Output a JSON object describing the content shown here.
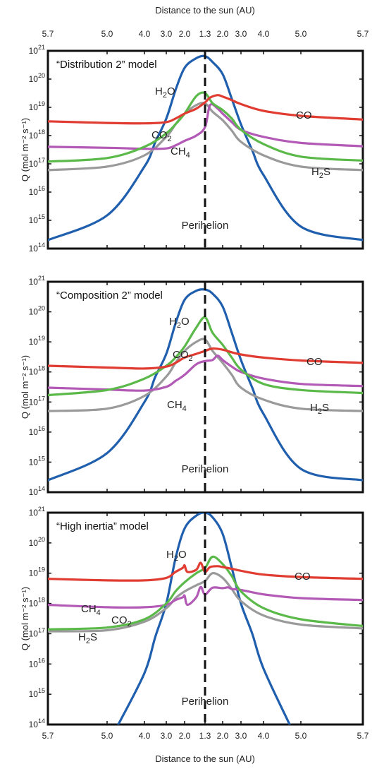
{
  "figure": {
    "top_axis_label": "Distance to the sun (AU)",
    "bottom_axis_label": "Distance to the sun (AU)",
    "x_tick_labels": [
      "5.7",
      "5.0",
      "4.0",
      "3.0",
      "2.0",
      "1.3",
      "2.0",
      "3.0",
      "4.0",
      "5.0",
      "5.7"
    ],
    "y_label": "Q (mol m⁻² s⁻¹)",
    "y_tick_exponents": [
      "14",
      "15",
      "16",
      "17",
      "18",
      "19",
      "20",
      "21"
    ],
    "y_tick_base": "10",
    "perihelion_label": "Perihelion"
  },
  "colors": {
    "H2O": "#1f5fad",
    "CO": "#e03c31",
    "CO2": "#5bb94a",
    "CH4": "#b25ab5",
    "H2S": "#9a9a9a"
  },
  "chart_data": [
    {
      "type": "line",
      "title": "“Distribution 2” model",
      "x_kind": "orbital position, inbound 5.7 AU → perihelion 1.3 AU → outbound 5.7 AU",
      "ylim": [
        100000000000000.0,
        1e+21
      ],
      "y_scale": "log",
      "annotations": {
        "H2O": "H₂O",
        "CO2": "CO₂",
        "CH4": "CH₄",
        "CO": "CO",
        "H2S": "H₂S"
      },
      "series": [
        {
          "name": "H2O",
          "x": [
            5.7,
            5.0,
            4.0,
            3.5,
            3.0,
            2.5,
            2.0,
            1.6,
            1.3,
            1.6,
            2.0,
            2.5,
            3.0,
            3.5,
            4.0,
            5.0,
            5.7
          ],
          "y": [
            200000000000000.0,
            1500000000000000.0,
            8e+16,
            6e+17,
            4e+18,
            4e+19,
            2.5e+20,
            5.5e+20,
            6.5e+20,
            4e+20,
            1.5e+20,
            2e+19,
            2.5e+18,
            3e+17,
            4e+16,
            600000000000000.0,
            200000000000000.0
          ]
        },
        {
          "name": "CO",
          "x": [
            5.7,
            5.0,
            4.0,
            3.0,
            2.5,
            2.0,
            1.6,
            1.3,
            1.5,
            1.8,
            2.0,
            2.5,
            3.0,
            4.0,
            5.0,
            5.7
          ],
          "y": [
            3.2e+18,
            2.8e+18,
            2.7e+18,
            3e+18,
            4e+18,
            6e+18,
            9e+18,
            1.5e+19,
            2.2e+19,
            2.7e+19,
            2.4e+19,
            1.8e+19,
            1.3e+19,
            7.5e+18,
            5e+18,
            3.7e+18
          ]
        },
        {
          "name": "CO2",
          "x": [
            5.7,
            5.0,
            4.0,
            3.0,
            2.5,
            2.0,
            1.6,
            1.3,
            1.6,
            2.0,
            2.5,
            3.0,
            4.0,
            5.0,
            5.7
          ],
          "y": [
            1.2e+17,
            1.6e+17,
            4e+17,
            1.2e+18,
            2.5e+18,
            6e+18,
            2.5e+19,
            3.2e+19,
            1.4e+19,
            8e+18,
            4e+18,
            1.6e+18,
            5e+17,
            1.8e+17,
            1.3e+17
          ]
        },
        {
          "name": "CH4",
          "x": [
            5.7,
            5.0,
            4.0,
            3.0,
            2.5,
            2.0,
            1.6,
            1.3,
            1.5,
            1.8,
            2.0,
            2.5,
            3.0,
            4.0,
            5.0,
            5.7
          ],
          "y": [
            4e+17,
            3.7e+17,
            3.4e+17,
            3.5e+17,
            4.5e+17,
            6.5e+17,
            1e+18,
            2e+18,
            1.2e+19,
            9e+18,
            6e+18,
            3e+18,
            1.6e+18,
            9e+17,
            5.5e+17,
            4.2e+17
          ]
        },
        {
          "name": "H2S",
          "x": [
            5.7,
            5.0,
            4.0,
            3.0,
            2.5,
            2.0,
            1.6,
            1.3,
            1.6,
            2.0,
            2.5,
            3.0,
            4.0,
            5.0,
            5.7
          ],
          "y": [
            6e+16,
            8e+16,
            2e+17,
            9e+17,
            2.5e+18,
            6e+18,
            1.2e+19,
            1.4e+19,
            7e+18,
            3.5e+18,
            1.5e+18,
            6e+17,
            2e+17,
            8e+16,
            6e+16
          ]
        }
      ]
    },
    {
      "type": "line",
      "title": "“Composition 2” model",
      "x_kind": "orbital position, inbound 5.7 AU → perihelion 1.3 AU → outbound 5.7 AU",
      "ylim": [
        100000000000000.0,
        1e+21
      ],
      "y_scale": "log",
      "annotations": {
        "H2O": "H₂O",
        "CO2": "CO₂",
        "CH4": "CH₄",
        "CO": "CO",
        "H2S": "H₂S"
      },
      "series": [
        {
          "name": "H2O",
          "x": [
            5.7,
            5.0,
            4.0,
            3.5,
            3.0,
            2.5,
            2.0,
            1.6,
            1.3,
            1.6,
            2.0,
            2.5,
            3.0,
            3.5,
            4.0,
            5.0,
            5.7
          ],
          "y": [
            250000000000000.0,
            2000000000000000.0,
            1e+17,
            7e+17,
            4e+18,
            4e+19,
            2.5e+20,
            5e+20,
            5.5e+20,
            4e+20,
            1.5e+20,
            2e+19,
            2.5e+18,
            3e+17,
            4e+16,
            600000000000000.0,
            250000000000000.0
          ]
        },
        {
          "name": "CO",
          "x": [
            5.7,
            5.0,
            4.0,
            3.0,
            2.5,
            2.0,
            1.6,
            1.3,
            1.6,
            2.0,
            2.5,
            3.0,
            4.0,
            5.0,
            5.7
          ],
          "y": [
            1.6e+18,
            1.4e+18,
            1.3e+18,
            1.5e+18,
            2e+18,
            3e+18,
            4e+18,
            5e+18,
            6e+18,
            5.5e+18,
            4.5e+18,
            3.8e+18,
            3e+18,
            2.4e+18,
            2e+18
          ]
        },
        {
          "name": "CO2",
          "x": [
            5.7,
            5.0,
            4.0,
            3.0,
            2.5,
            2.0,
            1.6,
            1.3,
            1.6,
            2.0,
            2.5,
            3.0,
            4.0,
            5.0,
            5.7
          ],
          "y": [
            1.7e+17,
            2.5e+17,
            6e+17,
            1.6e+18,
            3e+18,
            7e+18,
            3e+19,
            6.5e+19,
            2e+19,
            8e+18,
            3e+18,
            1.2e+18,
            4e+17,
            2.5e+17,
            2e+17
          ]
        },
        {
          "name": "CH4",
          "x": [
            5.7,
            5.0,
            4.0,
            3.0,
            2.5,
            2.0,
            1.6,
            1.3,
            1.6,
            1.8,
            2.0,
            2.5,
            3.0,
            4.0,
            5.0,
            5.7
          ],
          "y": [
            3e+17,
            2.6e+17,
            2.4e+17,
            3.2e+17,
            5e+17,
            8e+17,
            1.8e+18,
            2.3e+18,
            2.5e+18,
            3.5e+18,
            2.5e+18,
            1.5e+18,
            1e+18,
            6e+17,
            4e+17,
            3.4e+17
          ]
        },
        {
          "name": "H2S",
          "x": [
            5.7,
            5.0,
            4.0,
            3.0,
            2.5,
            2.0,
            1.6,
            1.3,
            1.6,
            2.0,
            2.5,
            3.0,
            4.0,
            5.0,
            5.7
          ],
          "y": [
            5e+16,
            6e+16,
            1.6e+17,
            7e+17,
            2e+18,
            5e+18,
            1e+19,
            1.2e+19,
            5e+18,
            2e+18,
            8e+17,
            3e+17,
            1.2e+17,
            6e+16,
            5e+16
          ]
        }
      ]
    },
    {
      "type": "line",
      "title": "“High inertia” model",
      "x_kind": "orbital position, inbound 5.7 AU → perihelion 1.3 AU → outbound 5.7 AU",
      "ylim": [
        100000000000000.0,
        1e+21
      ],
      "y_scale": "log",
      "annotations": {
        "H2O": "H₂O",
        "CO2": "CO₂",
        "CH4": "CH₄",
        "CO": "CO",
        "H2S": "H₂S"
      },
      "series": [
        {
          "name": "H2O",
          "x": [
            4.7,
            4.0,
            3.5,
            3.0,
            2.5,
            2.0,
            1.6,
            1.3,
            1.6,
            2.0,
            2.5,
            3.0,
            3.5,
            4.0,
            4.7
          ],
          "y": [
            100000000000000.0,
            5000000000000000.0,
            8e+16,
            1e+18,
            3e+19,
            3e+20,
            8e+20,
            1e+21,
            7e+20,
            2e+20,
            1.5e+19,
            1e+18,
            1e+17,
            7000000000000000.0,
            100000000000000.0
          ]
        },
        {
          "name": "CO",
          "x": [
            5.7,
            5.0,
            4.0,
            3.0,
            2.5,
            2.1,
            2.0,
            1.9,
            1.6,
            1.45,
            1.3,
            1.5,
            1.8,
            2.0,
            2.5,
            3.0,
            4.0,
            5.0,
            5.7
          ],
          "y": [
            6.5e+18,
            5.8e+18,
            5.8e+18,
            7e+18,
            1.1e+19,
            1.5e+19,
            1.8e+19,
            1.1e+19,
            1.3e+19,
            2.2e+19,
            1.1e+19,
            1.6e+19,
            1.7e+19,
            1.6e+19,
            1.4e+19,
            1.2e+19,
            9e+18,
            7.5e+18,
            6.5e+18
          ]
        },
        {
          "name": "CO2",
          "x": [
            5.7,
            5.0,
            4.0,
            3.0,
            2.5,
            2.0,
            1.6,
            1.3,
            1.6,
            2.0,
            2.5,
            3.0,
            4.0,
            5.0,
            5.7
          ],
          "y": [
            1.4e+17,
            1.6e+17,
            3e+17,
            1e+18,
            2.5e+18,
            5e+18,
            1e+19,
            1.5e+19,
            3.5e+19,
            2e+19,
            8e+18,
            2.5e+18,
            7e+17,
            3e+17,
            1.8e+17
          ]
        },
        {
          "name": "CH4",
          "x": [
            5.7,
            5.0,
            4.0,
            3.0,
            2.5,
            2.1,
            2.0,
            1.9,
            1.6,
            1.45,
            1.3,
            1.6,
            2.0,
            2.3,
            2.5,
            3.0,
            4.0,
            5.0,
            5.7
          ],
          "y": [
            9e+17,
            7.5e+17,
            7.5e+17,
            9e+17,
            1.3e+18,
            1.6e+18,
            1.8e+18,
            9e+17,
            1.6e+18,
            3.5e+18,
            2e+18,
            3.3e+18,
            3.2e+18,
            3.4e+18,
            3e+18,
            2.8e+18,
            2e+18,
            1.5e+18,
            1.3e+18
          ]
        },
        {
          "name": "H2S",
          "x": [
            5.7,
            5.0,
            4.0,
            3.0,
            2.5,
            2.0,
            1.6,
            1.3,
            1.6,
            2.0,
            2.5,
            3.0,
            4.0,
            5.0,
            5.7
          ],
          "y": [
            1.2e+17,
            1.3e+17,
            2.5e+17,
            7e+17,
            1.5e+18,
            2.5e+18,
            4e+18,
            5.5e+18,
            1e+19,
            7e+18,
            3e+18,
            1.2e+18,
            4e+17,
            2e+17,
            1.5e+17
          ]
        }
      ]
    }
  ]
}
